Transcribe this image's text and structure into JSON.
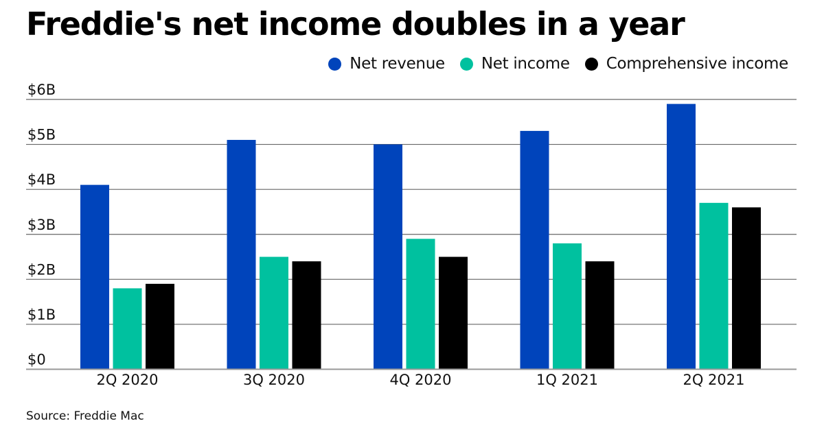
{
  "chart_data": {
    "type": "bar",
    "title": "Freddie's net income doubles in a year",
    "xlabel": "",
    "ylabel": "",
    "ylim": [
      0,
      6
    ],
    "yticks": [
      {
        "value": 0,
        "label": "$0"
      },
      {
        "value": 1,
        "label": "$1B"
      },
      {
        "value": 2,
        "label": "$2B"
      },
      {
        "value": 3,
        "label": "$3B"
      },
      {
        "value": 4,
        "label": "$4B"
      },
      {
        "value": 5,
        "label": "$5B"
      },
      {
        "value": 6,
        "label": "$6B"
      }
    ],
    "grid": true,
    "legend_position": "top-right",
    "categories": [
      "2Q 2020",
      "3Q 2020",
      "4Q 2020",
      "1Q 2021",
      "2Q 2021"
    ],
    "series": [
      {
        "name": "Net revenue",
        "color": "#0044BB",
        "values": [
          4.1,
          5.1,
          5.0,
          5.3,
          5.9
        ]
      },
      {
        "name": "Net income",
        "color": "#00C19F",
        "values": [
          1.8,
          2.5,
          2.9,
          2.8,
          3.7
        ]
      },
      {
        "name": "Comprehensive income",
        "color": "#000000",
        "values": [
          1.9,
          2.4,
          2.5,
          2.4,
          3.6
        ]
      }
    ],
    "units": "billions of dollars",
    "source": "Source: Freddie Mac"
  }
}
